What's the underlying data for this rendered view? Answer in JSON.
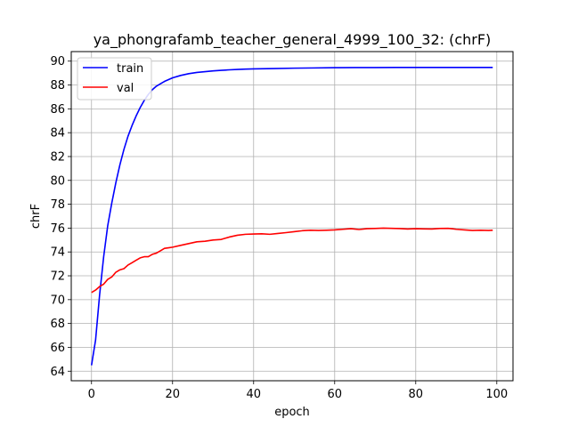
{
  "chart_data": {
    "type": "line",
    "title": "ya_phongrafamb_teacher_general_4999_100_32: (chrF)",
    "xlabel": "epoch",
    "ylabel": "chrF",
    "xlim": [
      -5,
      104
    ],
    "ylim": [
      63.2,
      90.8
    ],
    "xticks": [
      0,
      20,
      40,
      60,
      80,
      100
    ],
    "yticks": [
      64,
      66,
      68,
      70,
      72,
      74,
      76,
      78,
      80,
      82,
      84,
      86,
      88,
      90
    ],
    "grid": true,
    "legend_position": "top-left",
    "series": [
      {
        "name": "train",
        "color": "#0000ff",
        "x": [
          0,
          1,
          2,
          3,
          4,
          5,
          6,
          7,
          8,
          9,
          10,
          11,
          12,
          13,
          14,
          15,
          16,
          17,
          18,
          19,
          20,
          22,
          24,
          26,
          28,
          30,
          32,
          34,
          36,
          38,
          40,
          45,
          50,
          55,
          60,
          65,
          70,
          75,
          80,
          85,
          90,
          95,
          99
        ],
        "y": [
          64.5,
          66.6,
          70.4,
          73.6,
          76.2,
          78.1,
          79.8,
          81.3,
          82.6,
          83.7,
          84.6,
          85.4,
          86.1,
          86.7,
          87.2,
          87.6,
          87.9,
          88.1,
          88.3,
          88.45,
          88.6,
          88.8,
          88.95,
          89.05,
          89.12,
          89.18,
          89.23,
          89.27,
          89.3,
          89.33,
          89.35,
          89.38,
          89.41,
          89.43,
          89.45,
          89.46,
          89.46,
          89.47,
          89.47,
          89.47,
          89.47,
          89.47,
          89.47
        ]
      },
      {
        "name": "val",
        "color": "#ff0000",
        "x": [
          0,
          1,
          2,
          3,
          4,
          5,
          6,
          7,
          8,
          9,
          10,
          11,
          12,
          13,
          14,
          15,
          16,
          17,
          18,
          19,
          20,
          22,
          24,
          26,
          28,
          30,
          32,
          34,
          36,
          38,
          40,
          42,
          44,
          46,
          48,
          50,
          52,
          54,
          56,
          58,
          60,
          62,
          64,
          66,
          68,
          70,
          72,
          74,
          76,
          78,
          80,
          82,
          84,
          86,
          88,
          90,
          92,
          94,
          96,
          98,
          99
        ],
        "y": [
          70.6,
          70.8,
          71.1,
          71.3,
          71.7,
          71.9,
          72.3,
          72.5,
          72.6,
          72.9,
          73.1,
          73.3,
          73.5,
          73.6,
          73.6,
          73.8,
          73.9,
          74.1,
          74.3,
          74.35,
          74.4,
          74.55,
          74.7,
          74.85,
          74.9,
          75.0,
          75.05,
          75.25,
          75.4,
          75.48,
          75.5,
          75.52,
          75.48,
          75.55,
          75.62,
          75.7,
          75.78,
          75.82,
          75.8,
          75.82,
          75.85,
          75.9,
          75.95,
          75.88,
          75.95,
          75.97,
          76.0,
          75.98,
          75.96,
          75.92,
          75.95,
          75.93,
          75.92,
          75.97,
          75.98,
          75.9,
          75.85,
          75.8,
          75.82,
          75.8,
          75.82
        ]
      }
    ]
  }
}
